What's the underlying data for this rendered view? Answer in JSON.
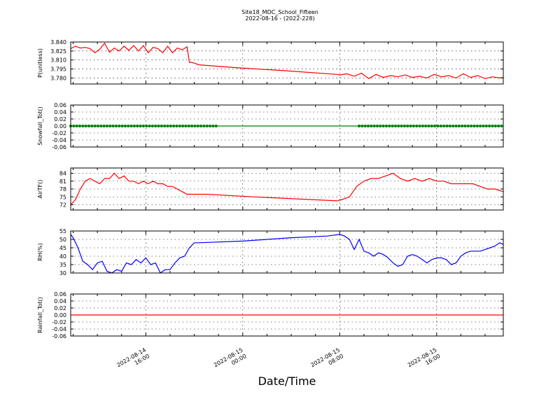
{
  "title": "Site18_MDC_School_Fifteen",
  "subtitle": "2022-08-16 - (2022-228)",
  "xlabel": "Date/Time",
  "x_ticks": [
    {
      "t": 16,
      "line1": "2022-08-14",
      "line2": "16:00"
    },
    {
      "t": 24,
      "line1": "2022-08-15",
      "line2": "00:00"
    },
    {
      "t": 32,
      "line1": "2022-08-15",
      "line2": "08:00"
    },
    {
      "t": 40,
      "line1": "2022-08-15",
      "line2": "16:00"
    }
  ],
  "x_range_hours": [
    9.8,
    45.5
  ],
  "chart_data": [
    {
      "type": "line",
      "ylabel": "P(unitless)",
      "color": "#ff0000",
      "ylim": [
        3.77,
        3.84
      ],
      "yticks": [
        3.78,
        3.795,
        3.81,
        3.825,
        3.84
      ],
      "ytick_labels": [
        "3.780",
        "3.795",
        "3.810",
        "3.825",
        "3.840"
      ],
      "markers": false,
      "x": [
        9.8,
        10.2,
        10.6,
        11.0,
        11.4,
        11.8,
        12.2,
        12.6,
        13.0,
        13.4,
        13.8,
        14.2,
        14.6,
        15.0,
        15.4,
        15.8,
        16.2,
        16.6,
        17.0,
        17.4,
        17.8,
        18.2,
        18.6,
        19.0,
        19.4,
        19.6,
        19.8,
        20.4,
        23.6,
        27.6,
        31.8,
        32.0,
        32.6,
        33.2,
        33.8,
        34.4,
        35.0,
        35.6,
        36.2,
        36.8,
        37.4,
        38.0,
        38.6,
        39.2,
        39.8,
        40.4,
        41.0,
        41.6,
        42.2,
        42.8,
        43.4,
        44.0,
        44.6,
        45.2,
        45.5
      ],
      "y": [
        3.829,
        3.833,
        3.83,
        3.831,
        3.829,
        3.822,
        3.828,
        3.838,
        3.823,
        3.83,
        3.825,
        3.833,
        3.826,
        3.834,
        3.825,
        3.834,
        3.822,
        3.831,
        3.829,
        3.822,
        3.833,
        3.822,
        3.83,
        3.827,
        3.832,
        3.806,
        3.806,
        3.802,
        3.797,
        3.792,
        3.786,
        3.785,
        3.787,
        3.783,
        3.788,
        3.779,
        3.786,
        3.781,
        3.784,
        3.782,
        3.785,
        3.781,
        3.783,
        3.78,
        3.786,
        3.782,
        3.784,
        3.78,
        3.787,
        3.781,
        3.784,
        3.779,
        3.782,
        3.78,
        3.781
      ]
    },
    {
      "type": "line",
      "ylabel": "Snowfall_Tot()",
      "color": "#007f00",
      "ylim": [
        -0.06,
        0.06
      ],
      "yticks": [
        -0.06,
        -0.04,
        -0.02,
        0.0,
        0.02,
        0.04,
        0.06
      ],
      "ytick_labels": [
        "-0.06",
        "-0.04",
        "-0.02",
        "0.00",
        "0.02",
        "0.04",
        "0.06"
      ],
      "markers": true,
      "x": [
        9.8,
        21.8,
        33.6,
        45.5
      ],
      "y": [
        0,
        0,
        0,
        0
      ]
    },
    {
      "type": "line",
      "ylabel": "AirTF()",
      "color": "#ff0000",
      "ylim": [
        70,
        86
      ],
      "yticks": [
        72,
        75,
        78,
        81,
        84
      ],
      "ytick_labels": [
        "72",
        "75",
        "78",
        "81",
        "84"
      ],
      "markers": false,
      "x": [
        9.8,
        10.2,
        10.6,
        11.0,
        11.4,
        11.8,
        12.2,
        12.6,
        13.0,
        13.4,
        13.8,
        14.2,
        14.6,
        15.0,
        15.4,
        15.8,
        16.2,
        16.6,
        17.0,
        17.4,
        17.8,
        18.2,
        18.6,
        19.0,
        19.4,
        19.8,
        21.0,
        25.0,
        31.8,
        32.2,
        32.8,
        33.4,
        34.0,
        34.6,
        35.2,
        35.8,
        36.4,
        37.0,
        37.6,
        38.2,
        38.8,
        39.4,
        40.0,
        40.6,
        41.2,
        41.8,
        42.4,
        43.0,
        43.6,
        44.2,
        44.8,
        45.5
      ],
      "y": [
        72,
        74,
        78,
        81,
        82,
        81,
        80,
        82,
        82,
        84,
        82,
        83,
        81,
        81,
        80,
        81,
        80,
        81,
        80,
        80,
        79,
        79,
        78,
        77,
        76,
        76,
        76,
        75,
        73.5,
        74,
        75,
        79,
        81,
        82,
        82,
        83,
        84,
        82,
        81,
        82,
        81,
        82,
        81,
        81,
        80,
        80,
        80,
        80,
        79,
        78,
        78,
        77
      ]
    },
    {
      "type": "line",
      "ylabel": "RH(%)",
      "color": "#0000ff",
      "ylim": [
        30,
        55
      ],
      "yticks": [
        30,
        35,
        40,
        45,
        50,
        55
      ],
      "ytick_labels": [
        "30",
        "35",
        "40",
        "45",
        "50",
        "55"
      ],
      "markers": false,
      "x": [
        9.8,
        10.0,
        10.4,
        10.8,
        11.2,
        11.6,
        12.0,
        12.4,
        12.8,
        13.2,
        13.6,
        14.0,
        14.4,
        14.8,
        15.2,
        15.6,
        16.0,
        16.4,
        16.8,
        17.2,
        17.6,
        18.0,
        18.4,
        18.8,
        19.2,
        19.6,
        20.0,
        20.4,
        24.0,
        28.0,
        31.0,
        32.0,
        32.4,
        32.8,
        33.2,
        33.6,
        34.0,
        34.4,
        34.8,
        35.2,
        35.6,
        36.0,
        36.4,
        36.8,
        37.2,
        37.6,
        38.0,
        38.4,
        38.8,
        39.2,
        39.6,
        40.0,
        40.4,
        40.8,
        41.2,
        41.6,
        42.0,
        42.4,
        42.8,
        43.2,
        43.6,
        44.0,
        44.4,
        44.8,
        45.2,
        45.5
      ],
      "y": [
        53,
        51,
        45,
        37,
        35,
        32,
        36,
        37,
        31,
        30,
        32,
        31,
        36,
        35,
        38,
        36,
        39,
        35,
        36,
        30,
        32,
        32,
        36,
        39,
        40,
        45,
        48,
        48,
        49,
        51,
        52,
        53,
        52,
        50,
        44,
        50,
        43,
        42,
        40,
        42,
        41,
        39,
        36,
        34,
        35,
        40,
        41,
        40,
        38,
        36,
        38,
        39,
        39,
        38,
        35,
        36,
        40,
        42,
        43,
        43,
        43,
        44,
        45,
        46,
        48,
        47
      ]
    },
    {
      "type": "line",
      "ylabel": "Rainfall_Tot()",
      "color": "#ff0000",
      "ylim": [
        -0.06,
        0.06
      ],
      "yticks": [
        -0.06,
        -0.04,
        -0.02,
        0.0,
        0.02,
        0.04,
        0.06
      ],
      "ytick_labels": [
        "-0.06",
        "-0.04",
        "-0.02",
        "0.00",
        "0.02",
        "0.04",
        "0.06"
      ],
      "markers": false,
      "x": [
        9.8,
        45.5
      ],
      "y": [
        0,
        0
      ]
    }
  ]
}
